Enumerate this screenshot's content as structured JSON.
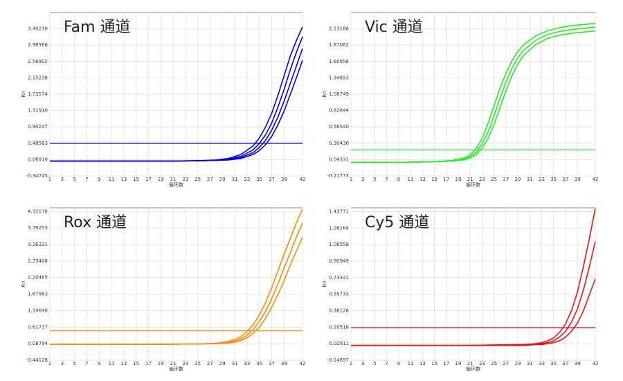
{
  "chart_data": [
    {
      "type": "line",
      "title": "Fam 通道",
      "x_label": "循环数",
      "y_label": "Rn",
      "color": "#0000ee",
      "threshold": 0.48583,
      "grid": true,
      "x": [
        1,
        10,
        20,
        25,
        28,
        30,
        32,
        34,
        35,
        36,
        37,
        38,
        39,
        40,
        41,
        42
      ],
      "series": [
        {
          "color": "#0000ee",
          "values": [
            0.03,
            0.03,
            0.03,
            0.04,
            0.06,
            0.1,
            0.2,
            0.42,
            0.62,
            0.9,
            1.25,
            1.7,
            2.2,
            2.7,
            3.1,
            3.45
          ]
        },
        {
          "color": "#0000ee",
          "values": [
            0.03,
            0.03,
            0.03,
            0.04,
            0.05,
            0.08,
            0.15,
            0.32,
            0.48,
            0.7,
            1.0,
            1.4,
            1.85,
            2.35,
            2.8,
            3.2
          ]
        },
        {
          "color": "#0000ee",
          "values": [
            0.03,
            0.03,
            0.03,
            0.04,
            0.05,
            0.07,
            0.12,
            0.25,
            0.38,
            0.56,
            0.82,
            1.15,
            1.55,
            2.0,
            2.45,
            2.9
          ]
        },
        {
          "color": "#0000ee",
          "values": [
            0.03,
            0.03,
            0.03,
            0.04,
            0.05,
            0.06,
            0.1,
            0.2,
            0.3,
            0.45,
            0.66,
            0.95,
            1.3,
            1.72,
            2.15,
            2.6
          ]
        }
      ],
      "xlim": [
        1,
        42
      ],
      "xticks": [
        1,
        3,
        5,
        7,
        9,
        11,
        13,
        15,
        17,
        19,
        21,
        23,
        25,
        27,
        29,
        31,
        33,
        35,
        37,
        39,
        42
      ],
      "ylim": [
        -0.34745,
        3.81894
      ],
      "yticks": [
        -0.34745,
        0.06919,
        0.48583,
        0.90247,
        {
          "value": 1.3191,
          "label": "1.31910"
        },
        1.73574,
        2.15238,
        2.56902,
        2.98566,
        {
          "value": 3.4023,
          "label": "3.40230"
        }
      ]
    },
    {
      "type": "line",
      "title": "Vic 通道",
      "x_label": "循环数",
      "y_label": "Rn",
      "color": "#22ee22",
      "threshold": 0.2,
      "grid": true,
      "x": [
        1,
        10,
        15,
        18,
        20,
        21,
        22,
        23,
        24,
        25,
        26,
        27,
        28,
        29,
        30,
        32,
        34,
        36,
        38,
        40,
        42
      ],
      "series": [
        {
          "color": "#22ee22",
          "values": [
            0,
            0,
            0.01,
            0.03,
            0.07,
            0.12,
            0.22,
            0.38,
            0.62,
            0.9,
            1.18,
            1.42,
            1.62,
            1.77,
            1.88,
            2.02,
            2.1,
            2.15,
            2.18,
            2.2,
            2.22
          ]
        },
        {
          "color": "#22ee22",
          "values": [
            0,
            0,
            0.01,
            0.02,
            0.05,
            0.09,
            0.16,
            0.29,
            0.48,
            0.74,
            1.02,
            1.28,
            1.5,
            1.67,
            1.79,
            1.95,
            2.04,
            2.09,
            2.12,
            2.14,
            2.16
          ]
        },
        {
          "color": "#22ee22",
          "values": [
            0,
            0,
            0.01,
            0.02,
            0.04,
            0.07,
            0.12,
            0.22,
            0.38,
            0.6,
            0.87,
            1.14,
            1.38,
            1.57,
            1.71,
            1.88,
            1.98,
            2.03,
            2.06,
            2.08,
            2.1
          ]
        }
      ],
      "xlim": [
        1,
        42
      ],
      "xticks": [
        1,
        3,
        5,
        7,
        9,
        11,
        13,
        15,
        17,
        19,
        21,
        23,
        25,
        27,
        29,
        31,
        33,
        35,
        37,
        39,
        42
      ],
      "ylim": [
        -0.21773,
        2.3927
      ],
      "yticks": [
        -0.21773,
        0.04331,
        0.30436,
        {
          "value": 0.5654,
          "label": "0.56540"
        },
        0.82644,
        1.08749,
        1.34853,
        1.60958,
        1.87062,
        2.13166
      ]
    },
    {
      "type": "line",
      "title": "Rox 通道",
      "x_label": "循环数",
      "y_label": "Rn",
      "color": "#ff8800",
      "threshold": 0.5,
      "grid": true,
      "x": [
        1,
        10,
        20,
        25,
        28,
        30,
        31,
        32,
        33,
        34,
        35,
        36,
        37,
        38,
        39,
        40,
        41,
        42
      ],
      "series": [
        {
          "color": "#ff8800",
          "values": [
            0.07,
            0.07,
            0.07,
            0.08,
            0.1,
            0.16,
            0.22,
            0.32,
            0.48,
            0.7,
            1.0,
            1.4,
            1.88,
            2.4,
            2.95,
            3.45,
            3.95,
            4.4
          ]
        },
        {
          "color": "#ff8800",
          "values": [
            0.07,
            0.07,
            0.07,
            0.08,
            0.09,
            0.13,
            0.17,
            0.24,
            0.36,
            0.54,
            0.8,
            1.12,
            1.52,
            2.0,
            2.5,
            3.0,
            3.5,
            3.95
          ]
        },
        {
          "color": "#ff8800",
          "values": [
            0.07,
            0.07,
            0.07,
            0.08,
            0.09,
            0.11,
            0.14,
            0.19,
            0.28,
            0.42,
            0.62,
            0.9,
            1.25,
            1.65,
            2.1,
            2.6,
            3.05,
            3.5
          ]
        }
      ],
      "xlim": [
        1,
        42
      ],
      "xticks": [
        1,
        3,
        5,
        7,
        9,
        11,
        13,
        15,
        17,
        19,
        21,
        23,
        25,
        27,
        29,
        31,
        33,
        35,
        37,
        39,
        42
      ],
      "ylim": [
        -0.44128,
        4.44
      ],
      "yticks": [
        -0.44128,
        0.08794,
        0.61717,
        {
          "value": 1.1464,
          "label": "1.14640"
        },
        1.67563,
        2.20485,
        2.73408,
        3.26331,
        3.79253,
        4.32176
      ]
    },
    {
      "type": "line",
      "title": "Cy5 通道",
      "x_label": "循环数",
      "y_label": "Rn",
      "color": "#ee1111",
      "threshold": 0.2,
      "grid": true,
      "x": [
        1,
        10,
        20,
        30,
        32,
        33,
        34,
        35,
        36,
        37,
        38,
        39,
        40,
        41,
        42
      ],
      "series": [
        {
          "color": "#ee1111",
          "values": [
            0.01,
            0.01,
            0.01,
            0.02,
            0.03,
            0.04,
            0.06,
            0.09,
            0.15,
            0.24,
            0.38,
            0.58,
            0.85,
            1.15,
            1.47
          ]
        },
        {
          "color": "#ee1111",
          "values": [
            0.01,
            0.01,
            0.01,
            0.02,
            0.02,
            0.03,
            0.04,
            0.06,
            0.1,
            0.16,
            0.26,
            0.4,
            0.6,
            0.85,
            1.12
          ]
        },
        {
          "color": "#ee1111",
          "values": [
            0.01,
            0.01,
            0.01,
            0.01,
            0.02,
            0.02,
            0.03,
            0.04,
            0.06,
            0.1,
            0.16,
            0.25,
            0.38,
            0.55,
            0.72
          ]
        }
      ],
      "xlim": [
        1,
        42
      ],
      "xticks": [
        1,
        3,
        5,
        7,
        9,
        11,
        13,
        15,
        17,
        19,
        21,
        23,
        25,
        27,
        29,
        31,
        33,
        35,
        37,
        39,
        42
      ],
      "ylim": [
        -0.14697,
        1.478
      ],
      "yticks": [
        -0.14697,
        0.02911,
        0.20518,
        0.38126,
        0.55733,
        0.73341,
        0.90949,
        1.08556,
        1.26164,
        1.43771
      ]
    }
  ]
}
